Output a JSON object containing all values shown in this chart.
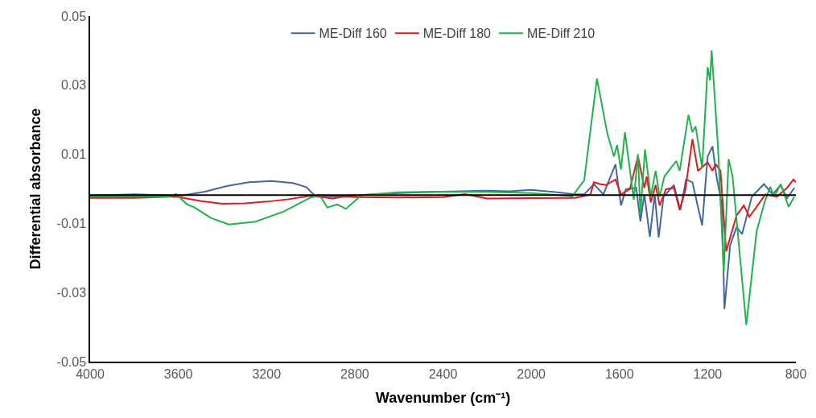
{
  "chart_data": {
    "type": "line",
    "xlabel": "Wavenumber (cm⁻¹)",
    "ylabel": "Differential absorbance",
    "xlim": [
      4000,
      800
    ],
    "xticks": [
      4000,
      3600,
      3200,
      2800,
      2400,
      2000,
      1600,
      1200,
      800
    ],
    "ylim": [
      -0.05,
      0.05
    ],
    "yticks": [
      -0.05,
      -0.03,
      -0.01,
      0.01,
      0.03,
      0.05
    ],
    "legend": "top",
    "marker": "none",
    "line_style": "solid",
    "ref_lines": [
      {
        "axis": "y",
        "value": -0.0018,
        "color": "#000000"
      }
    ],
    "series": [
      {
        "name": "ME-Diff 160",
        "color": "#44689c",
        "x": [
          4000,
          3800,
          3620,
          3582,
          3480,
          3380,
          3280,
          3178,
          3080,
          3020,
          2982,
          2900,
          2800,
          2600,
          2400,
          2200,
          2100,
          2000,
          1900,
          1800,
          1760,
          1716,
          1673,
          1618,
          1593,
          1571,
          1524,
          1505,
          1487,
          1462,
          1440,
          1422,
          1400,
          1353,
          1324,
          1298,
          1269,
          1225,
          1200,
          1178,
          1160,
          1135,
          1124,
          1098,
          1069,
          1044,
          1000,
          945,
          905,
          869,
          840,
          807
        ],
        "values": [
          -0.0019,
          -0.0016,
          -0.0019,
          -0.0019,
          -0.0008,
          0.0008,
          0.0019,
          0.0023,
          0.0017,
          0.0005,
          -0.0019,
          -0.0022,
          -0.0019,
          -0.0012,
          -0.0008,
          -0.0005,
          -0.0007,
          -0.0003,
          -0.0009,
          -0.0016,
          -0.0016,
          0.0014,
          -0.0016,
          0.0071,
          -0.0048,
          -0.0001,
          0.0003,
          -0.0094,
          -0.0016,
          -0.0139,
          -0.0016,
          -0.0141,
          -0.0023,
          0.0011,
          -0.0061,
          0.0027,
          0.0019,
          -0.0106,
          0.0094,
          0.0123,
          0.0036,
          -0.0048,
          -0.0348,
          -0.0163,
          -0.0111,
          -0.0131,
          -0.0023,
          0.0014,
          -0.0016,
          0.0011,
          -0.0027,
          0.0003
        ]
      },
      {
        "name": "ME-Diff 180",
        "color": "#e0191c",
        "x": [
          4000,
          3800,
          3614,
          3500,
          3400,
          3300,
          3200,
          3100,
          3000,
          2900,
          2850,
          2800,
          2600,
          2400,
          2300,
          2200,
          2000,
          1800,
          1731,
          1716,
          1690,
          1662,
          1618,
          1593,
          1553,
          1516,
          1487,
          1476,
          1458,
          1436,
          1418,
          1389,
          1353,
          1327,
          1302,
          1269,
          1244,
          1200,
          1178,
          1164,
          1142,
          1116,
          1069,
          1036,
          1011,
          938,
          887,
          840,
          811,
          800
        ],
        "values": [
          -0.0026,
          -0.0026,
          -0.0022,
          -0.0035,
          -0.0043,
          -0.0042,
          -0.0037,
          -0.003,
          -0.002,
          -0.0028,
          -0.0022,
          -0.0024,
          -0.0025,
          -0.0024,
          -0.0015,
          -0.0028,
          -0.0027,
          -0.0026,
          -0.0016,
          0.0019,
          0.0014,
          0.0011,
          0.0027,
          -0.0016,
          -0.0001,
          0.0094,
          0.0003,
          0.0036,
          -0.0039,
          0.0011,
          -0.0048,
          -0.0001,
          0.0003,
          -0.0061,
          -0.0006,
          0.0144,
          0.0052,
          0.0077,
          0.0052,
          0.0072,
          0.0052,
          -0.0181,
          -0.0077,
          -0.0048,
          -0.0081,
          -0.0016,
          -0.0023,
          0.0003,
          0.0027,
          0.0019
        ]
      },
      {
        "name": "ME-Diff 210",
        "color": "#22b14c",
        "x": [
          4000,
          3800,
          3640,
          3611,
          3560,
          3527,
          3450,
          3371,
          3250,
          3120,
          3000,
          2960,
          2924,
          2880,
          2840,
          2770,
          2600,
          2400,
          2200,
          2000,
          1900,
          1814,
          1760,
          1702,
          1655,
          1625,
          1611,
          1593,
          1575,
          1535,
          1516,
          1505,
          1484,
          1458,
          1436,
          1418,
          1396,
          1342,
          1327,
          1287,
          1269,
          1255,
          1225,
          1200,
          1189,
          1182,
          1153,
          1127,
          1105,
          1087,
          1025,
          978,
          942,
          916,
          898,
          869,
          833,
          807
        ],
        "values": [
          -0.0022,
          -0.0022,
          -0.0022,
          -0.0015,
          -0.0045,
          -0.0054,
          -0.0085,
          -0.0103,
          -0.0095,
          -0.0065,
          -0.0025,
          -0.0018,
          -0.0054,
          -0.0045,
          -0.0058,
          -0.0018,
          -0.001,
          -0.0008,
          -0.0009,
          -0.0012,
          -0.0017,
          -0.0022,
          0.0025,
          0.0319,
          0.016,
          0.0094,
          0.0127,
          0.0056,
          0.0164,
          -0.0031,
          0.0101,
          -0.0073,
          0.0114,
          -0.0023,
          0.0052,
          -0.0023,
          0.0036,
          0.0081,
          0.0052,
          0.0214,
          0.0164,
          0.0181,
          0.0061,
          0.0352,
          0.0314,
          0.0401,
          0.0119,
          -0.0239,
          0.0086,
          0.0036,
          -0.0394,
          -0.0123,
          -0.0039,
          0.0006,
          -0.0023,
          0.0014,
          -0.0052,
          -0.0023
        ]
      }
    ]
  }
}
